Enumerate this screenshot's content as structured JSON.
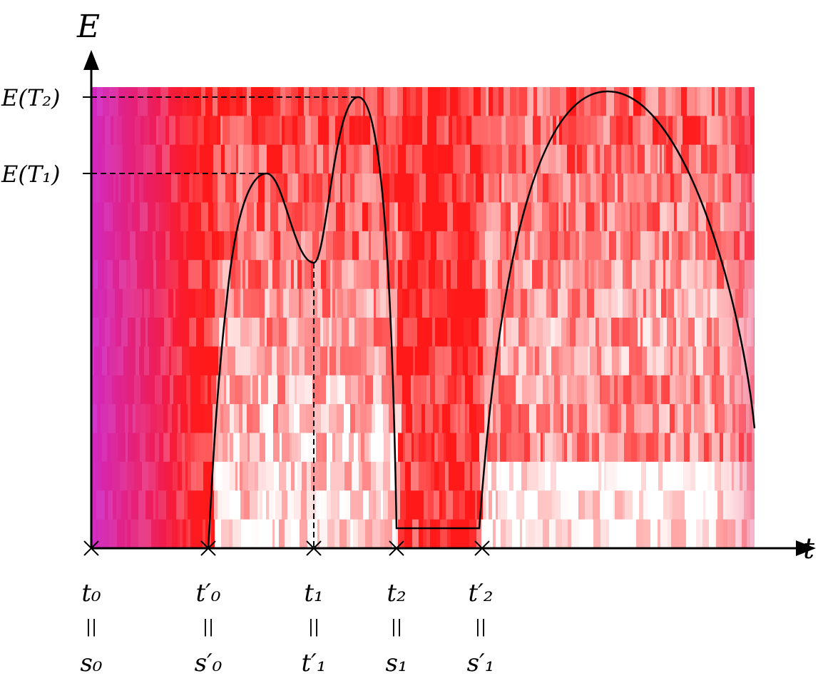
{
  "axes": {
    "y_label": "E",
    "x_label": "t"
  },
  "energy_levels": [
    {
      "id": "T2",
      "label": "E(T₂)"
    },
    {
      "id": "T1",
      "label": "E(T₁)"
    }
  ],
  "time_ticks": [
    {
      "id": "t0",
      "top": "t₀",
      "eq": "||",
      "bottom": "s₀"
    },
    {
      "id": "t0p",
      "top": "t′₀",
      "eq": "||",
      "bottom": "s′₀"
    },
    {
      "id": "t1",
      "top": "t₁",
      "eq": "||",
      "bottom": "t′₁"
    },
    {
      "id": "t2",
      "top": "t₂",
      "eq": "||",
      "bottom": "s₁"
    },
    {
      "id": "t2p",
      "top": "t′₂",
      "eq": "||",
      "bottom": "s′₁"
    }
  ],
  "colors": {
    "heatmap_low": "#ffffff",
    "heatmap_mid": "#ff1a1a",
    "heatmap_high": "#d020e0",
    "curve": "#000000"
  }
}
